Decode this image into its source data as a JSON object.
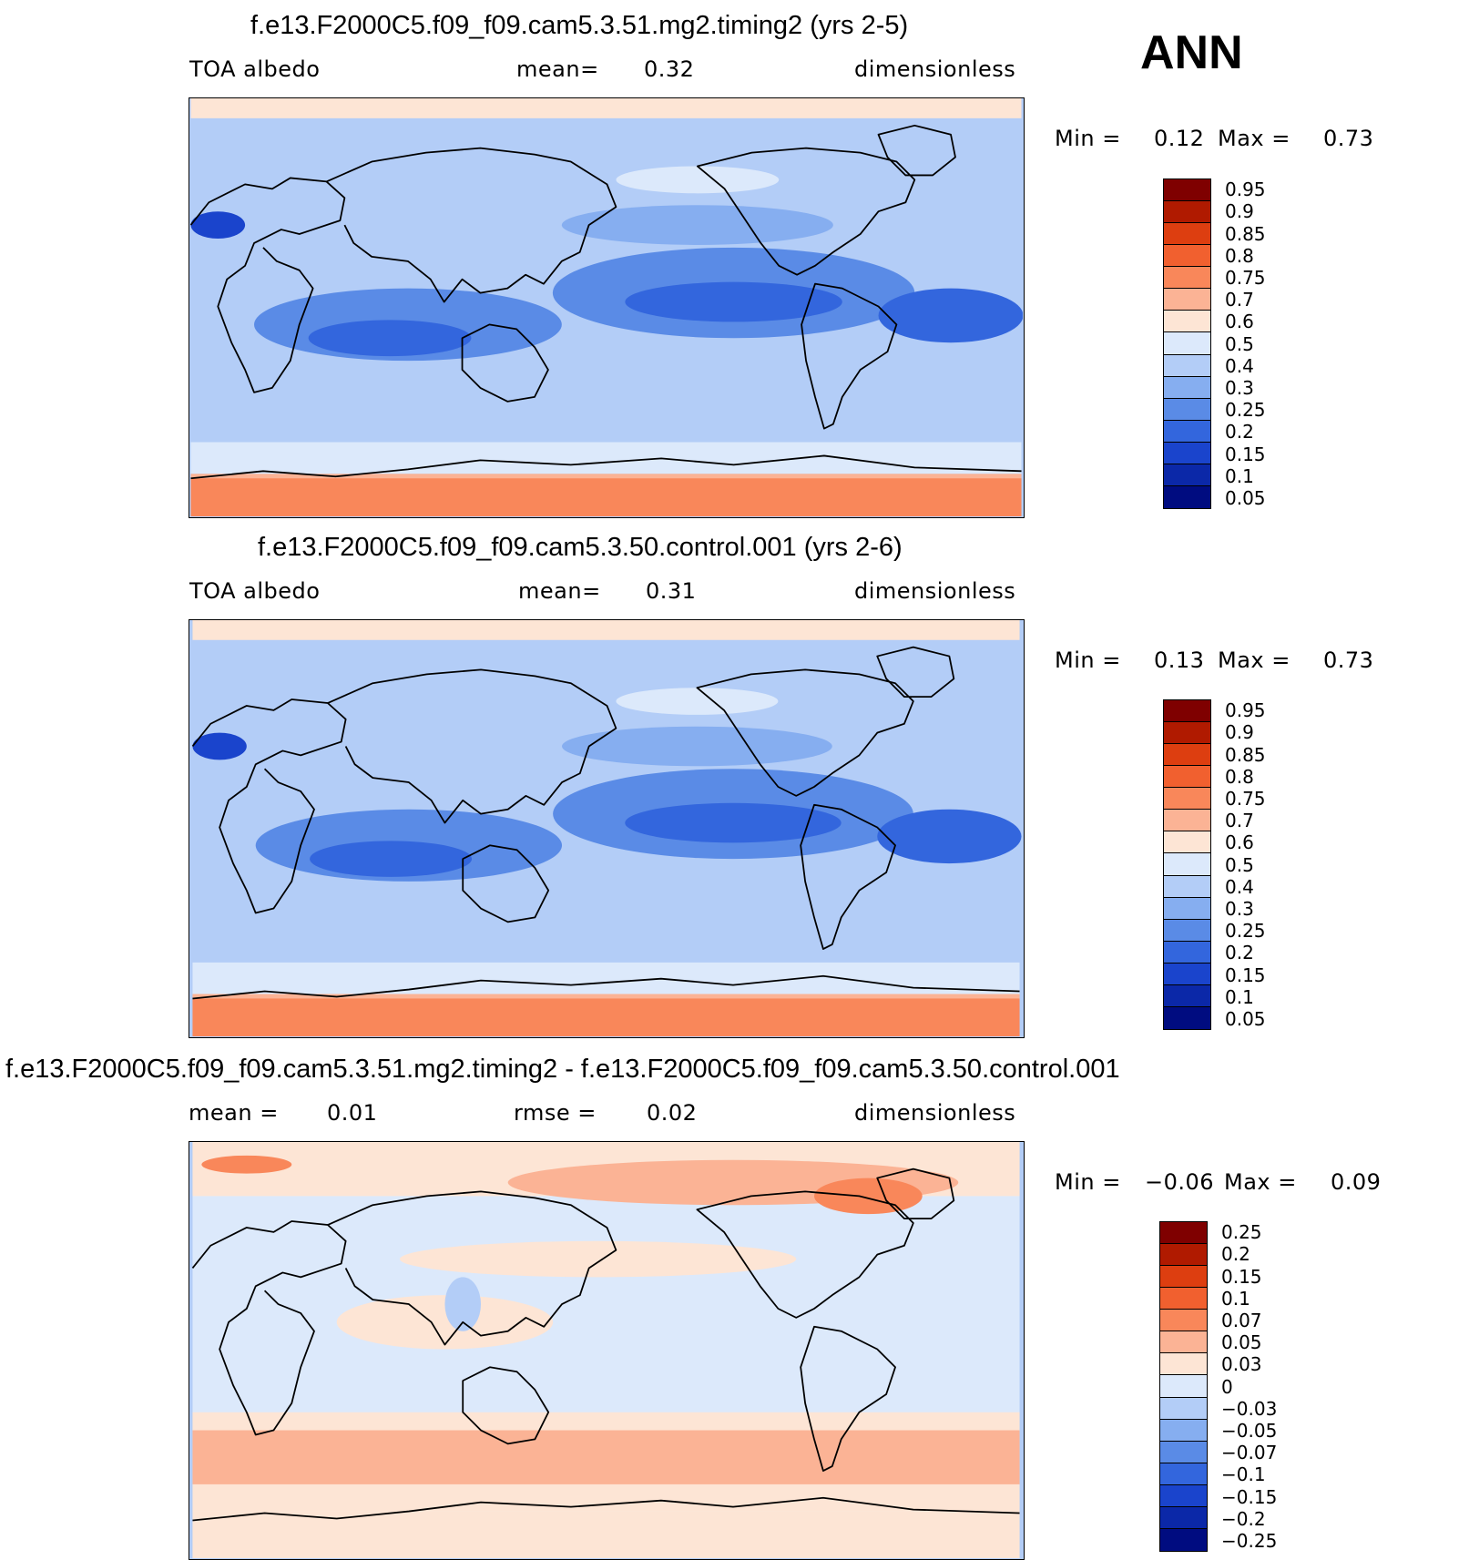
{
  "season": "ANN",
  "panels": [
    {
      "title": "f.e13.F2000C5.f09_f09.cam5.3.51.mg2.timing2 (yrs 2-5)",
      "left_label": "TOA albedo",
      "center_label": "mean=",
      "center_value": "0.32",
      "right_label": "dimensionless",
      "min_label": "Min =",
      "min_value": "0.12",
      "max_label": "Max =",
      "max_value": "0.73",
      "scheme": "abs"
    },
    {
      "title": "f.e13.F2000C5.f09_f09.cam5.3.50.control.001 (yrs 2-6)",
      "left_label": "TOA albedo",
      "center_label": "mean=",
      "center_value": "0.31",
      "right_label": "dimensionless",
      "min_label": "Min =",
      "min_value": "0.13",
      "max_label": "Max =",
      "max_value": "0.73",
      "scheme": "abs"
    },
    {
      "title": "f.e13.F2000C5.f09_f09.cam5.3.51.mg2.timing2 - f.e13.F2000C5.f09_f09.cam5.3.50.control.001",
      "left_label": "mean =",
      "left_value": "0.01",
      "center_label": "rmse =",
      "center_value": "0.02",
      "right_label": "dimensionless",
      "min_label": "Min =",
      "min_value": "−0.06",
      "max_label": "Max =",
      "max_value": "0.09",
      "scheme": "diff"
    }
  ],
  "colorbars": {
    "abs": {
      "colors": [
        "#7f0000",
        "#b01a00",
        "#dd3e10",
        "#f1602f",
        "#f9875a",
        "#fbb395",
        "#fde5d5",
        "#dce9fb",
        "#b3cdf7",
        "#86aef0",
        "#5a8be6",
        "#3366dd",
        "#1a44cc",
        "#0b28a8",
        "#000c80"
      ],
      "labels": [
        "0.95",
        "0.9",
        "0.85",
        "0.8",
        "0.75",
        "0.7",
        "0.6",
        "0.5",
        "0.4",
        "0.3",
        "0.25",
        "0.2",
        "0.15",
        "0.1",
        "0.05"
      ]
    },
    "diff": {
      "colors": [
        "#7f0000",
        "#b01a00",
        "#dd3e10",
        "#f1602f",
        "#f9875a",
        "#fbb395",
        "#fde5d5",
        "#dce9fb",
        "#b3cdf7",
        "#86aef0",
        "#5a8be6",
        "#3366dd",
        "#1a44cc",
        "#0b28a8",
        "#000c80"
      ],
      "labels": [
        "0.25",
        "0.2",
        "0.15",
        "0.1",
        "0.07",
        "0.05",
        "0.03",
        "0",
        "−0.03",
        "−0.05",
        "−0.07",
        "−0.1",
        "−0.15",
        "−0.2",
        "−0.25"
      ]
    }
  },
  "chart_data": [
    {
      "type": "heatmap",
      "title": "f.e13.F2000C5.f09_f09.cam5.3.51.mg2.timing2 (yrs 2-5)",
      "variable": "TOA albedo",
      "units": "dimensionless",
      "mean": 0.32,
      "min": 0.12,
      "max": 0.73,
      "levels": [
        0.05,
        0.1,
        0.15,
        0.2,
        0.25,
        0.3,
        0.4,
        0.5,
        0.6,
        0.7,
        0.75,
        0.8,
        0.85,
        0.9,
        0.95
      ]
    },
    {
      "type": "heatmap",
      "title": "f.e13.F2000C5.f09_f09.cam5.3.50.control.001 (yrs 2-6)",
      "variable": "TOA albedo",
      "units": "dimensionless",
      "mean": 0.31,
      "min": 0.13,
      "max": 0.73,
      "levels": [
        0.05,
        0.1,
        0.15,
        0.2,
        0.25,
        0.3,
        0.4,
        0.5,
        0.6,
        0.7,
        0.75,
        0.8,
        0.85,
        0.9,
        0.95
      ]
    },
    {
      "type": "heatmap",
      "title": "f.e13.F2000C5.f09_f09.cam5.3.51.mg2.timing2 - f.e13.F2000C5.f09_f09.cam5.3.50.control.001",
      "units": "dimensionless",
      "mean": 0.01,
      "rmse": 0.02,
      "min": -0.06,
      "max": 0.09,
      "levels": [
        -0.25,
        -0.2,
        -0.15,
        -0.1,
        -0.07,
        -0.05,
        -0.03,
        0,
        0.03,
        0.05,
        0.07,
        0.1,
        0.15,
        0.2,
        0.25
      ]
    }
  ]
}
